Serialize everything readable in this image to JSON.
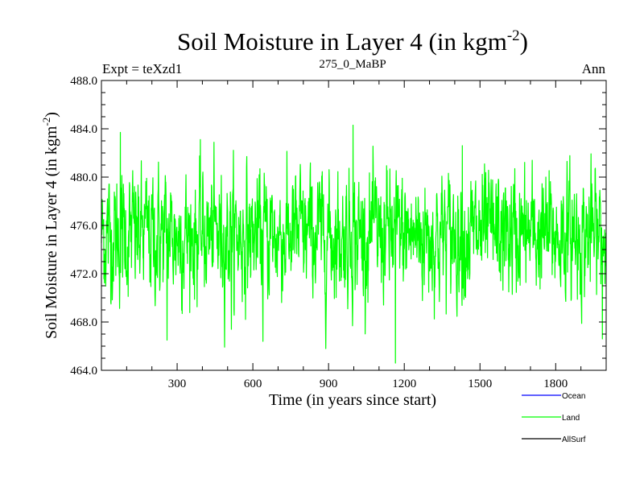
{
  "chart_data": {
    "type": "line",
    "title": "Soil Moisture in Layer 4 (in kgm",
    "title_sup": "-2",
    "title_close": ")",
    "subtitle_left": "Expt = teXzd1",
    "subtitle_center": "275_0_MaBP",
    "subtitle_right": "Ann",
    "xlabel": "Time (in years since start)",
    "ylabel": "Soil Moisture in Layer 4 (in kgm",
    "ylabel_sup": "-2",
    "ylabel_close": ")",
    "xlim": [
      0,
      2000
    ],
    "ylim": [
      464,
      488
    ],
    "xticks": [
      300,
      600,
      900,
      1200,
      1500,
      1800
    ],
    "xtick_labels": [
      "300",
      "600",
      "900",
      "1200",
      "1500",
      "1800"
    ],
    "yticks": [
      464,
      468,
      472,
      476,
      480,
      484,
      488
    ],
    "ytick_labels": [
      "464.0",
      "468.0",
      "472.0",
      "476.0",
      "480.0",
      "484.0",
      "488.0"
    ],
    "x_minor_step": 100,
    "y_minor_step": 1,
    "series": [
      {
        "name": "Land",
        "color": "#00ff00",
        "x_start": 0,
        "x_step": 1,
        "n_points": 2000,
        "mean": 475.2,
        "min": 464.6,
        "max": 484.3,
        "notable_points": [
          {
            "x": 75,
            "y": 483.7
          },
          {
            "x": 260,
            "y": 466.5
          },
          {
            "x": 515,
            "y": 467.4
          },
          {
            "x": 640,
            "y": 466.4
          },
          {
            "x": 997,
            "y": 484.3
          },
          {
            "x": 1165,
            "y": 464.6
          },
          {
            "x": 1430,
            "y": 482.6
          },
          {
            "x": 1985,
            "y": 466.6
          }
        ]
      }
    ],
    "legend": [
      {
        "label": "Ocean",
        "color": "#0000ff"
      },
      {
        "label": "Land",
        "color": "#00ff00"
      },
      {
        "label": "AllSurf",
        "color": "#000000"
      }
    ]
  }
}
